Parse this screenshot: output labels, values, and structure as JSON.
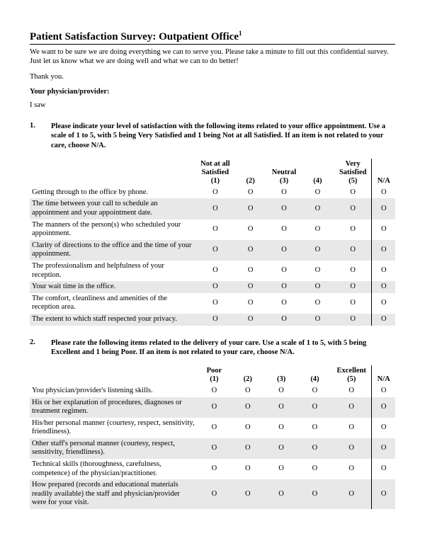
{
  "title": "Patient Satisfaction Survey: Outpatient Office",
  "title_footnote": "1",
  "intro": "We want to be sure we are doing everything we can to serve you. Please take a minute to fill out this confidential survey. Just let us know what we are doing well and what we can to do better!",
  "thankyou": "Thank you.",
  "physician_label": "Your physician/provider:",
  "isaw": "I saw",
  "option_glyph": "O",
  "q1": {
    "num": "1.",
    "text": "Please indicate your level of satisfaction with the following items related to your office appointment. Use a scale of 1 to 5, with 5 being Very Satisfied and 1 being Not at all Satisfied. If an item is not related to your care, choose N/A.",
    "headers": {
      "h1a": "Not at all",
      "h1b": "Satisfied",
      "h1c": "(1)",
      "h2": "(2)",
      "h3a": "Neutral",
      "h3b": "(3)",
      "h4": "(4)",
      "h5a": "Very",
      "h5b": "Satisfied",
      "h5c": "(5)",
      "hna": "N/A"
    },
    "rows": [
      {
        "item": "Getting through to the office by phone.",
        "shaded": false
      },
      {
        "item": "The time between your call to schedule an appointment and your appointment date.",
        "shaded": true
      },
      {
        "item": "The manners of the person(s) who scheduled your appointment.",
        "shaded": false
      },
      {
        "item": "Clarity of directions to the office and the time of your appointment.",
        "shaded": true
      },
      {
        "item": "The professionalism and helpfulness of your reception.",
        "shaded": false
      },
      {
        "item": "Your wait time in the office.",
        "shaded": true
      },
      {
        "item": "The comfort, cleanliness and amenities of the reception area.",
        "shaded": false
      },
      {
        "item": "The extent to which staff respected your privacy.",
        "shaded": true
      }
    ]
  },
  "q2": {
    "num": "2.",
    "text": "Please rate the following items related to the delivery of your care. Use a scale of 1 to 5, with 5 being Excellent and 1 being Poor. If an item is not related to your care, choose N/A.",
    "headers": {
      "h1a": "Poor",
      "h1b": "(1)",
      "h2": "(2)",
      "h3": "(3)",
      "h4": "(4)",
      "h5a": "Excellent",
      "h5b": "(5)",
      "hna": "N/A"
    },
    "rows": [
      {
        "item": "You physician/provider's listening skills.",
        "shaded": false
      },
      {
        "item": "His or her explanation of procedures, diagnoses or treatment regimen.",
        "shaded": true
      },
      {
        "item": "His/her personal manner (courtesy, respect, sensitivity, friendliness).",
        "shaded": false
      },
      {
        "item": "Other staff's personal manner (courtesy, respect, sensitivity, friendliness).",
        "shaded": true
      },
      {
        "item": "Technical skills (thoroughness, carefulness, competence) of the physician/practitioner.",
        "shaded": false
      },
      {
        "item": "How prepared (records and educational materials readily available) the staff and physician/provider were for your visit.",
        "shaded": true
      }
    ]
  }
}
